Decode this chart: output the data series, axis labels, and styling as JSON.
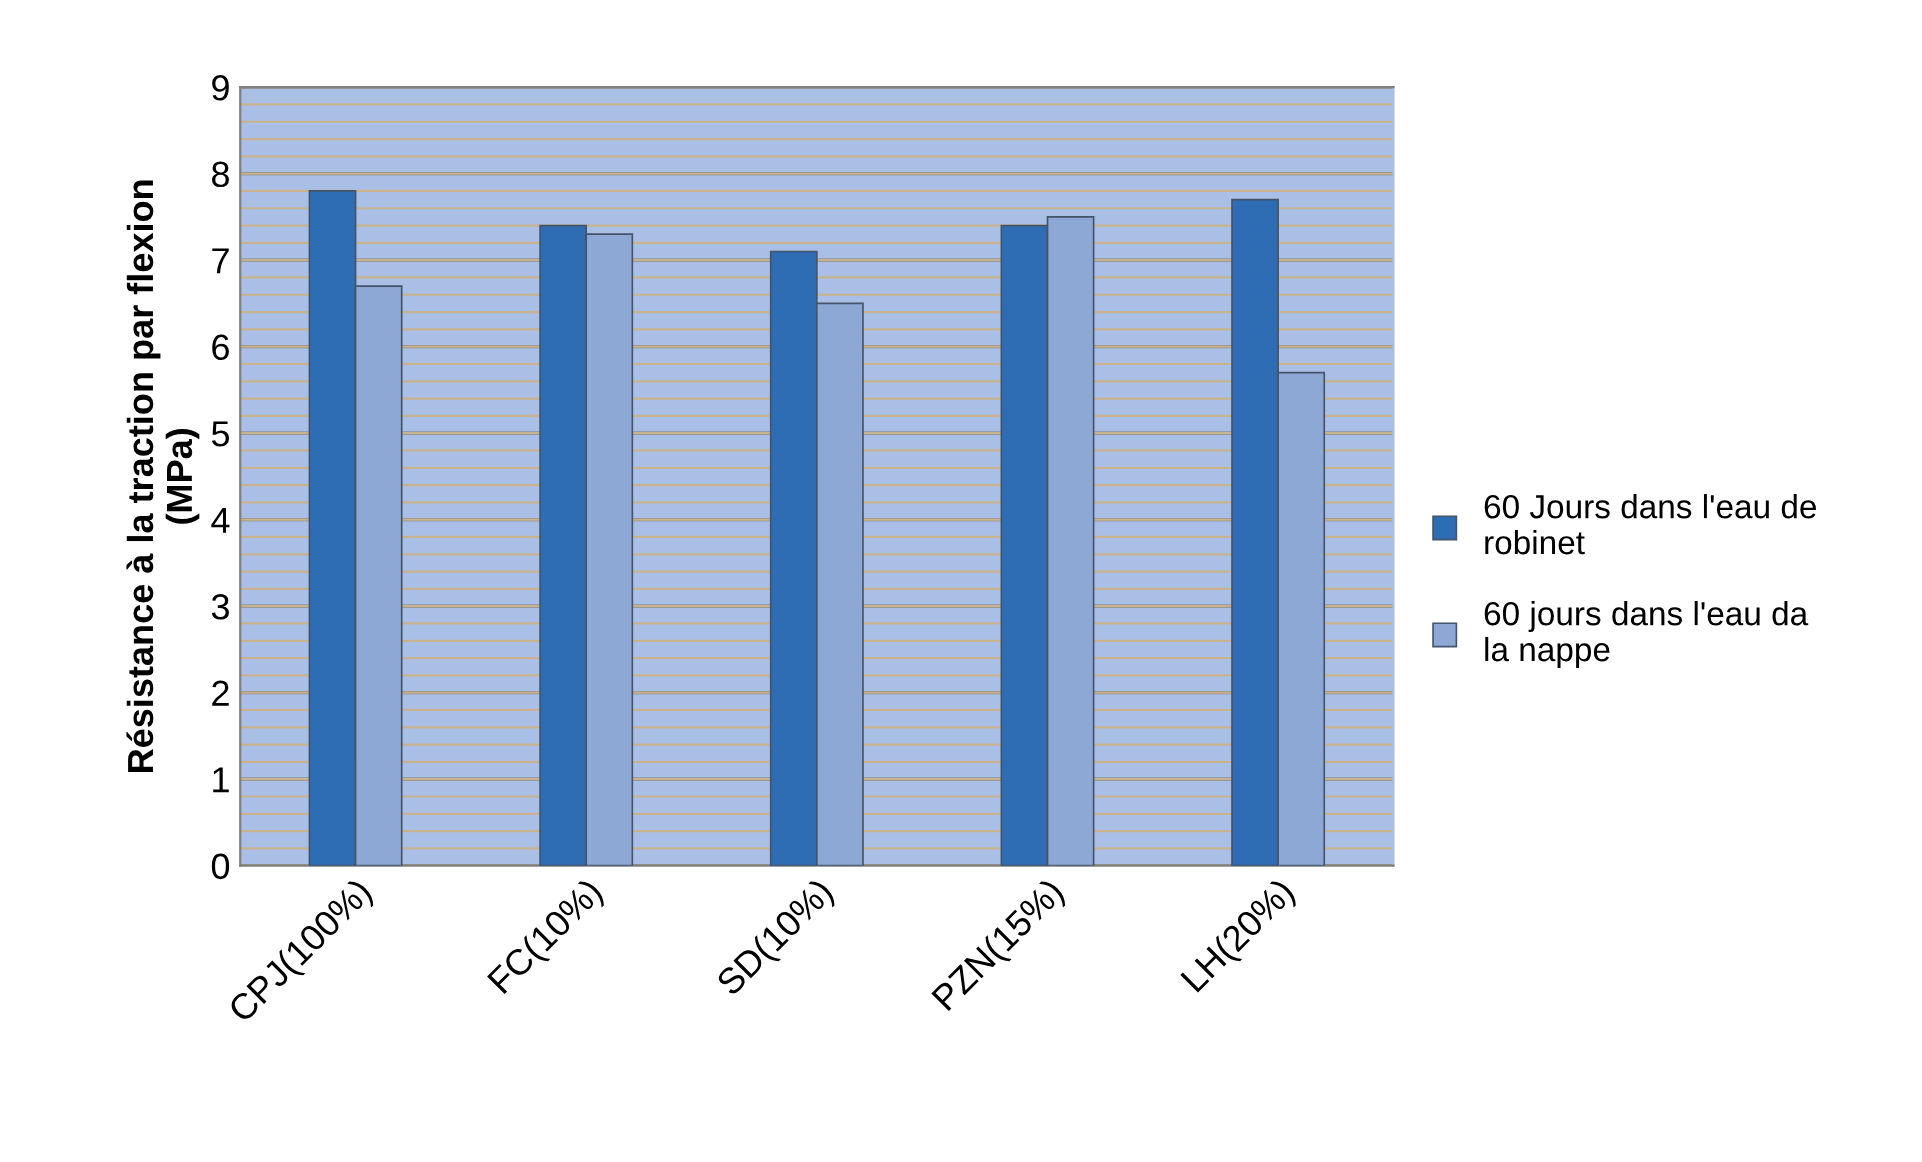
{
  "chart_data": {
    "type": "bar",
    "ylabel": "Résistance à la traction par flexion\n(MPa)",
    "categories": [
      "CPJ(100%)",
      "FC(10%)",
      "SD(10%)",
      "PZN(15%)",
      "LH(20%)"
    ],
    "series": [
      {
        "name": "60 Jours dans l'eau de robinet",
        "color": "#2e6db4",
        "values": [
          7.8,
          7.4,
          7.1,
          7.4,
          7.7
        ]
      },
      {
        "name": "60 jours dans l'eau da la nappe",
        "color": "#8ea8d6",
        "values": [
          6.7,
          7.3,
          6.5,
          7.5,
          5.7
        ]
      }
    ],
    "ylim": [
      0,
      9
    ],
    "yticks": [
      0,
      1,
      2,
      3,
      4,
      5,
      6,
      7,
      8,
      9
    ],
    "grid": "y",
    "legend": "right"
  }
}
